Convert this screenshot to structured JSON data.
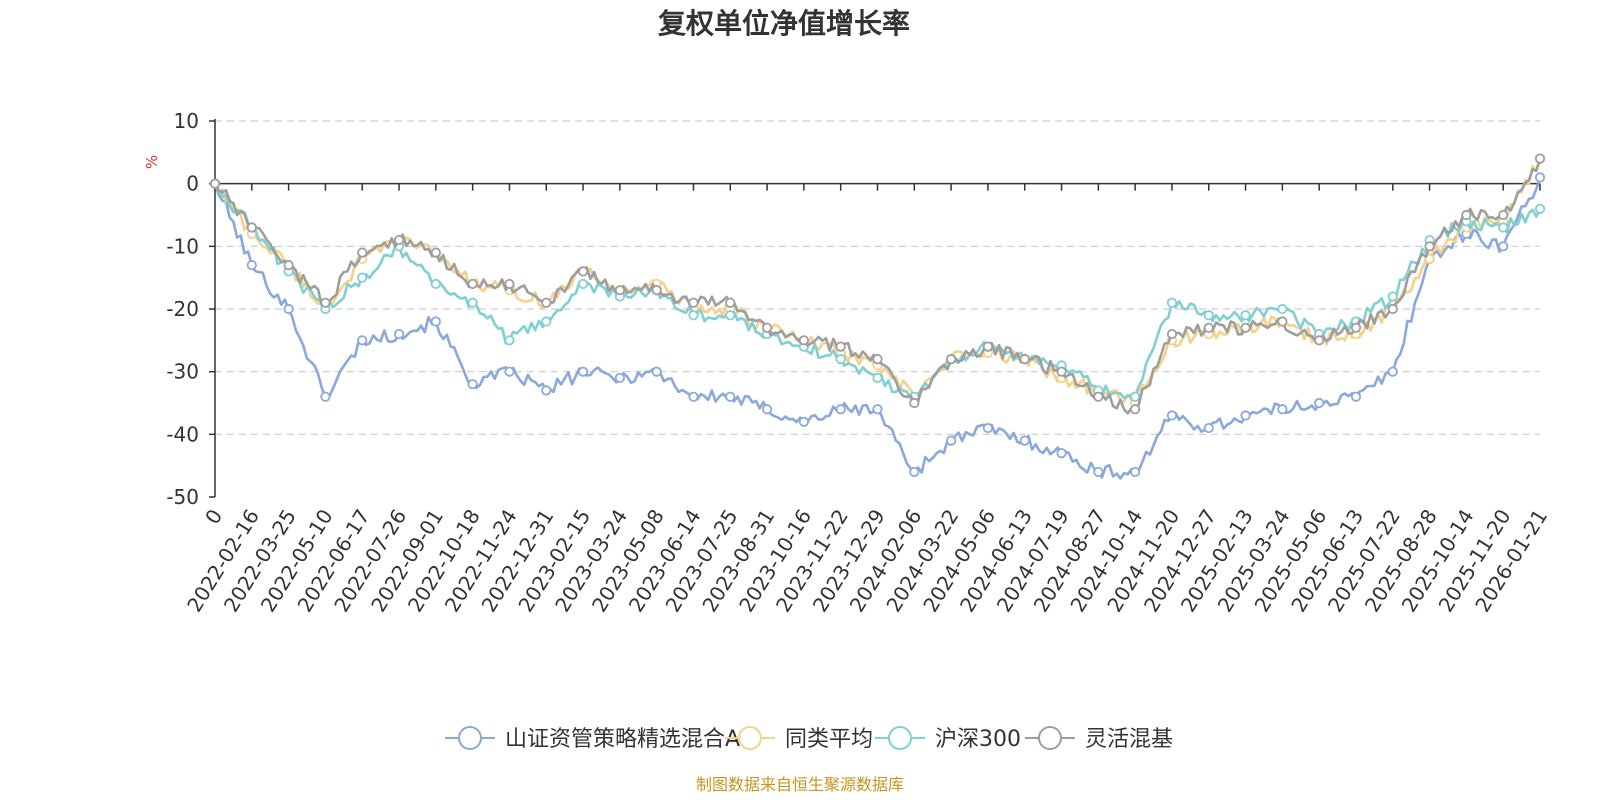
{
  "chart_data": {
    "type": "line",
    "title": "复权单位净值增长率",
    "ylabel": "%",
    "xlabel": "",
    "ylim": [
      -50,
      10
    ],
    "yticks": [
      10,
      0,
      -10,
      -20,
      -30,
      -40,
      -50
    ],
    "grid": true,
    "legend_position": "bottom",
    "source": "制图数据来自恒生聚源数据库",
    "x": [
      "0",
      "2022-02-16",
      "2022-03-25",
      "2022-05-10",
      "2022-06-17",
      "2022-07-26",
      "2022-09-01",
      "2022-10-18",
      "2022-11-24",
      "2022-12-31",
      "2023-02-15",
      "2023-03-24",
      "2023-05-08",
      "2023-06-14",
      "2023-07-25",
      "2023-08-31",
      "2023-10-16",
      "2023-11-22",
      "2023-12-29",
      "2024-02-06",
      "2024-03-22",
      "2024-05-06",
      "2024-06-13",
      "2024-07-19",
      "2024-08-27",
      "2024-10-14",
      "2024-11-20",
      "2024-12-27",
      "2025-02-13",
      "2025-03-24",
      "2025-05-06",
      "2025-06-13",
      "2025-07-22",
      "2025-08-28",
      "2025-10-14",
      "2025-11-20",
      "2026-01-21"
    ],
    "series": [
      {
        "name": "山证资管策略精选混合A",
        "color": "#8aa8d9",
        "values": [
          0,
          -13,
          -20,
          -34,
          -25,
          -24,
          -22,
          -32,
          -30,
          -33,
          -30,
          -31,
          -30,
          -34,
          -34,
          -36,
          -38,
          -36,
          -36,
          -46,
          -41,
          -39,
          -41,
          -43,
          -46,
          -46,
          -37,
          -39,
          -37,
          -36,
          -35,
          -34,
          -30,
          -12,
          -8,
          -10,
          1
        ]
      },
      {
        "name": "同类平均",
        "color": "#f7d08a",
        "values": [
          0,
          -8,
          -13,
          -20,
          -12,
          -9,
          -11,
          -16,
          -17,
          -19,
          -14,
          -17,
          -16,
          -20,
          -20,
          -23,
          -25,
          -27,
          -29,
          -34,
          -28,
          -27,
          -28,
          -31,
          -33,
          -35,
          -25,
          -24,
          -23,
          -22,
          -25,
          -24,
          -20,
          -12,
          -7,
          -6,
          4
        ]
      },
      {
        "name": "沪深300",
        "color": "#7fcfd3",
        "values": [
          0,
          -7,
          -14,
          -20,
          -15,
          -10,
          -16,
          -19,
          -25,
          -22,
          -16,
          -18,
          -17,
          -21,
          -21,
          -24,
          -26,
          -28,
          -31,
          -34,
          -28,
          -26,
          -28,
          -29,
          -33,
          -34,
          -19,
          -21,
          -21,
          -20,
          -24,
          -22,
          -18,
          -9,
          -6,
          -7,
          -4
        ]
      },
      {
        "name": "灵活混基",
        "color": "#9e9e9e",
        "values": [
          0,
          -7,
          -13,
          -19,
          -11,
          -9,
          -11,
          -16,
          -16,
          -19,
          -14,
          -17,
          -17,
          -19,
          -19,
          -23,
          -25,
          -26,
          -28,
          -35,
          -28,
          -26,
          -28,
          -30,
          -34,
          -36,
          -24,
          -23,
          -23,
          -22,
          -25,
          -23,
          -20,
          -10,
          -5,
          -5,
          4
        ]
      }
    ]
  }
}
